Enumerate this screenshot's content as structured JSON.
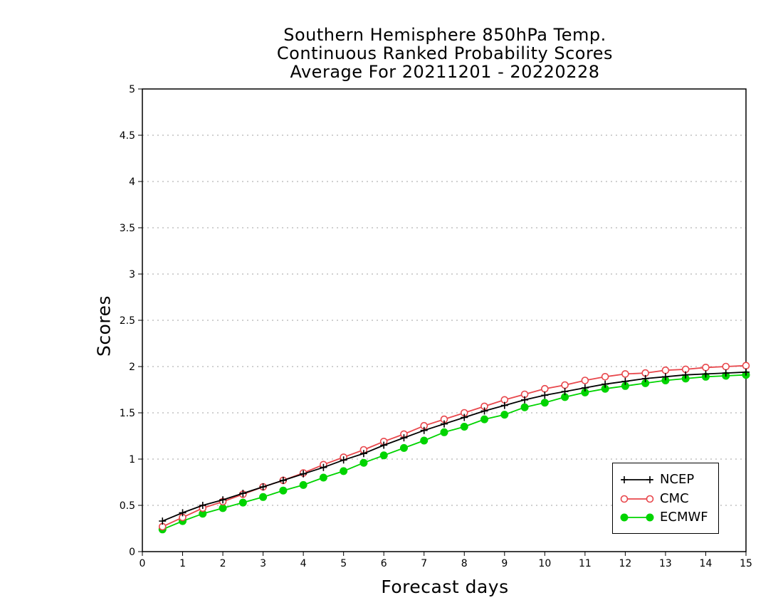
{
  "chart_data": {
    "type": "line",
    "title_lines": [
      "Southern Hemisphere 850hPa Temp.",
      "Continuous Ranked Probability Scores",
      "Average For 20211201 - 20220228"
    ],
    "xlabel": "Forecast days",
    "ylabel": "Scores",
    "xlim": [
      0,
      15
    ],
    "ylim": [
      0,
      5
    ],
    "xticks": [
      0,
      1,
      2,
      3,
      4,
      5,
      6,
      7,
      8,
      9,
      10,
      11,
      12,
      13,
      14,
      15
    ],
    "yticks": [
      0,
      0.5,
      1,
      1.5,
      2,
      2.5,
      3,
      3.5,
      4,
      4.5,
      5
    ],
    "ytick_labels": [
      "0",
      "0.5",
      "1",
      "1.5",
      "2",
      "2.5",
      "3",
      "3.5",
      "4",
      "4.5",
      "5"
    ],
    "grid": "horizontal dotted",
    "legend_position": "bottom-right",
    "x": [
      0.5,
      1,
      1.5,
      2,
      2.5,
      3,
      3.5,
      4,
      4.5,
      5,
      5.5,
      6,
      6.5,
      7,
      7.5,
      8,
      8.5,
      9,
      9.5,
      10,
      10.5,
      11,
      11.5,
      12,
      12.5,
      13,
      13.5,
      14,
      14.5,
      15
    ],
    "series": [
      {
        "name": "NCEP",
        "color": "#000000",
        "marker": "plus",
        "values": [
          0.33,
          0.42,
          0.5,
          0.56,
          0.63,
          0.7,
          0.77,
          0.84,
          0.91,
          0.99,
          1.06,
          1.15,
          1.23,
          1.31,
          1.38,
          1.45,
          1.52,
          1.58,
          1.64,
          1.69,
          1.73,
          1.77,
          1.81,
          1.84,
          1.87,
          1.89,
          1.91,
          1.92,
          1.93,
          1.94
        ]
      },
      {
        "name": "CMC",
        "color": "#e8474c",
        "marker": "open-circle",
        "values": [
          0.27,
          0.37,
          0.47,
          0.54,
          0.62,
          0.7,
          0.77,
          0.85,
          0.94,
          1.02,
          1.1,
          1.19,
          1.27,
          1.36,
          1.43,
          1.5,
          1.57,
          1.64,
          1.7,
          1.76,
          1.8,
          1.85,
          1.89,
          1.92,
          1.93,
          1.96,
          1.97,
          1.99,
          2.0,
          2.01
        ]
      },
      {
        "name": "ECMWF",
        "color": "#00d400",
        "marker": "filled-circle",
        "values": [
          0.24,
          0.33,
          0.41,
          0.47,
          0.53,
          0.59,
          0.66,
          0.72,
          0.8,
          0.87,
          0.96,
          1.04,
          1.12,
          1.2,
          1.29,
          1.35,
          1.43,
          1.48,
          1.56,
          1.61,
          1.67,
          1.72,
          1.76,
          1.79,
          1.82,
          1.85,
          1.87,
          1.89,
          1.9,
          1.91
        ]
      }
    ]
  }
}
